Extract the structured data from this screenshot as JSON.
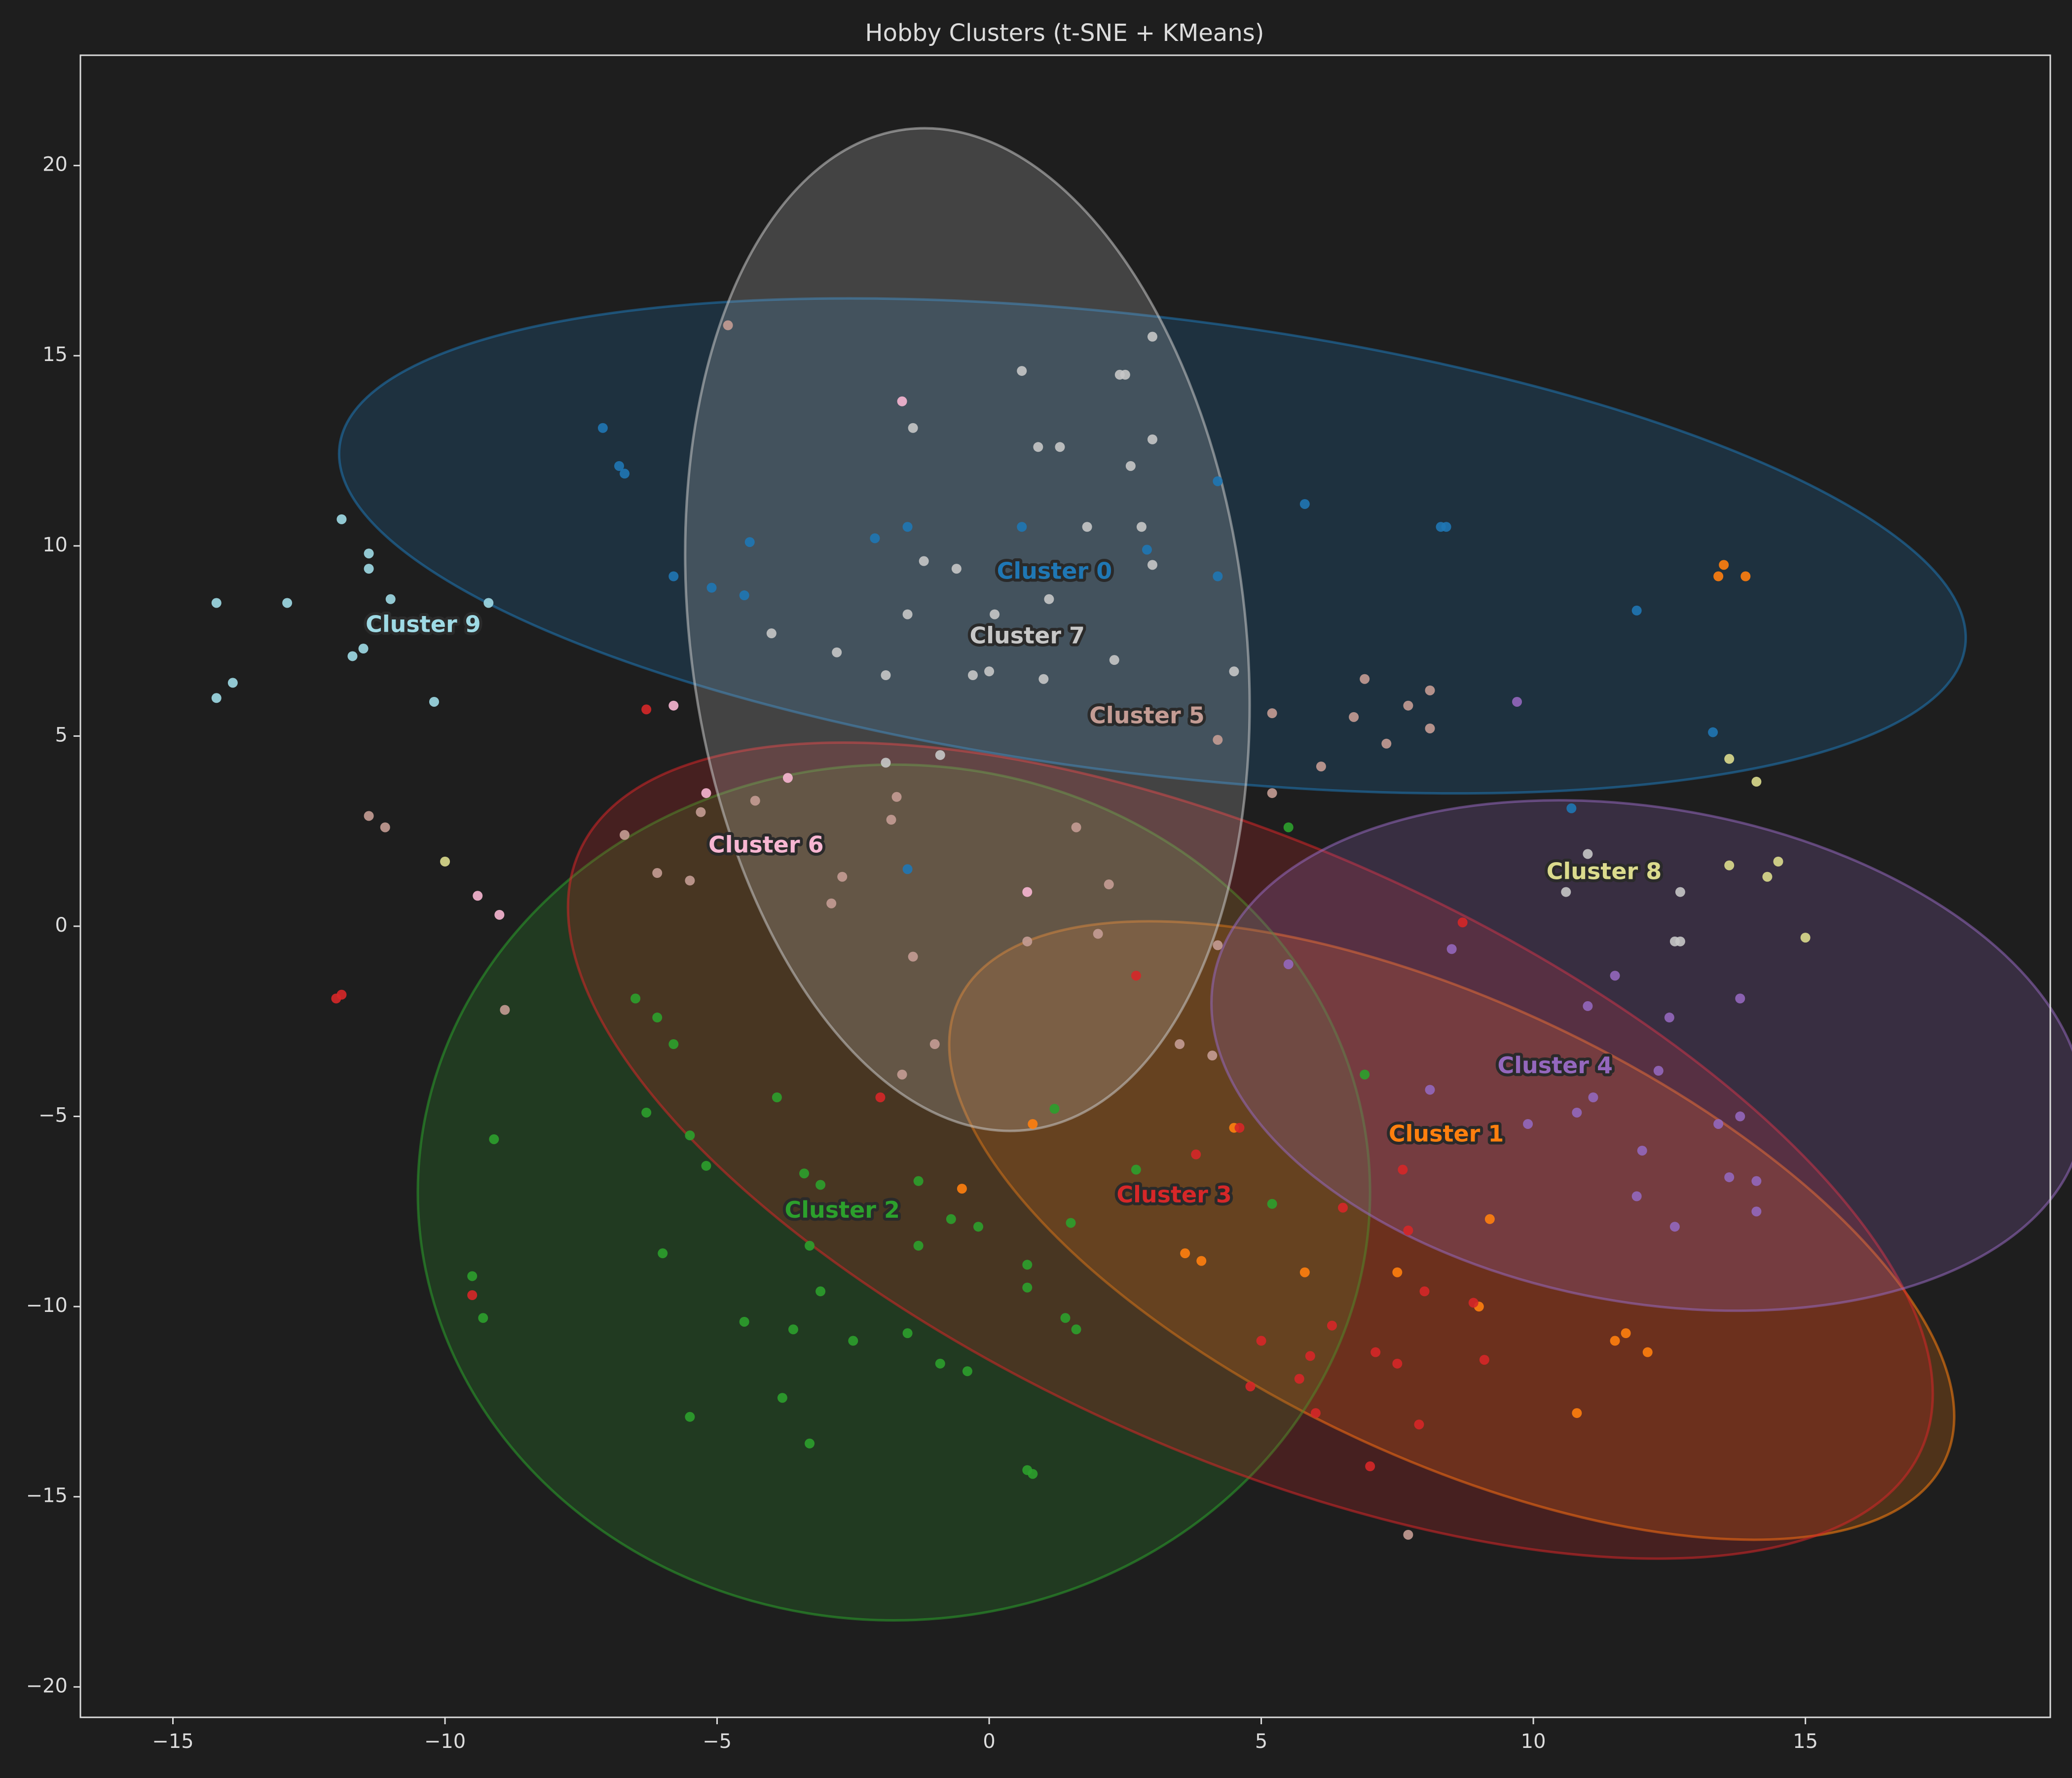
{
  "chart_data": {
    "type": "scatter",
    "title": "Hobby Clusters (t-SNE + KMeans)",
    "xlabel": "",
    "ylabel": "",
    "xlim": [
      -16.7,
      19.5
    ],
    "ylim": [
      -20.8,
      22.9
    ],
    "xticks": [
      -15,
      -10,
      -5,
      0,
      5,
      10,
      15
    ],
    "yticks": [
      -20,
      -15,
      -10,
      -5,
      0,
      5,
      10,
      15,
      20
    ],
    "grid": false,
    "legend": "none",
    "background": "#1e1e1e",
    "axis_color": "#dcdcdc",
    "clusters": [
      {
        "label": "Cluster 0",
        "color": "#1f77b4",
        "label_pos": [
          1.2,
          9.3
        ],
        "ellipse": {
          "center": [
            3.0,
            10.0
          ],
          "width": 30.1,
          "height": 12.0,
          "angle": -7
        },
        "points": [
          [
            -7.1,
            13.1
          ],
          [
            -6.8,
            12.1
          ],
          [
            -6.7,
            11.9
          ],
          [
            -5.8,
            9.2
          ],
          [
            -5.1,
            8.9
          ],
          [
            -4.4,
            10.1
          ],
          [
            -4.5,
            8.7
          ],
          [
            -2.1,
            10.2
          ],
          [
            -1.5,
            10.5
          ],
          [
            0.6,
            10.5
          ],
          [
            4.2,
            11.7
          ],
          [
            4.2,
            9.2
          ],
          [
            5.8,
            11.1
          ],
          [
            8.3,
            10.5
          ],
          [
            8.4,
            10.5
          ],
          [
            11.9,
            8.3
          ],
          [
            13.3,
            5.1
          ],
          [
            10.7,
            3.1
          ],
          [
            -1.5,
            1.5
          ],
          [
            2.9,
            9.9
          ]
        ]
      },
      {
        "label": "Cluster 1",
        "color": "#ff7f0e",
        "label_pos": [
          8.4,
          -5.5
        ],
        "ellipse": {
          "center": [
            8.5,
            -8.0
          ],
          "width": 20,
          "height": 12,
          "angle": -25
        },
        "points": [
          [
            13.4,
            9.2
          ],
          [
            13.5,
            9.5
          ],
          [
            13.9,
            9.2
          ],
          [
            -0.5,
            -6.9
          ],
          [
            0.8,
            -5.2
          ],
          [
            3.6,
            -8.6
          ],
          [
            3.9,
            -8.8
          ],
          [
            4.5,
            -5.3
          ],
          [
            5.8,
            -9.1
          ],
          [
            7.5,
            -9.1
          ],
          [
            9.0,
            -10.0
          ],
          [
            9.2,
            -7.7
          ],
          [
            10.8,
            -12.8
          ],
          [
            11.5,
            -10.9
          ],
          [
            11.7,
            -10.7
          ],
          [
            12.1,
            -11.2
          ]
        ]
      },
      {
        "label": "Cluster 2",
        "color": "#2ca02c",
        "label_pos": [
          -2.7,
          -7.5
        ],
        "ellipse": {
          "center": [
            -1.75,
            -7.0
          ],
          "width": 17.5,
          "height": 22.5,
          "angle": 0
        },
        "points": [
          [
            -6.5,
            -1.9
          ],
          [
            -6.1,
            -2.4
          ],
          [
            -5.8,
            -3.1
          ],
          [
            -6.3,
            -4.9
          ],
          [
            -5.5,
            -5.5
          ],
          [
            -5.2,
            -6.3
          ],
          [
            -3.9,
            -4.5
          ],
          [
            -3.4,
            -6.5
          ],
          [
            -3.1,
            -6.8
          ],
          [
            -3.3,
            -8.4
          ],
          [
            -3.1,
            -9.6
          ],
          [
            -6.0,
            -8.6
          ],
          [
            -9.1,
            -5.6
          ],
          [
            -9.5,
            -9.2
          ],
          [
            -9.3,
            -10.3
          ],
          [
            -4.5,
            -10.4
          ],
          [
            -3.6,
            -10.6
          ],
          [
            -2.5,
            -10.9
          ],
          [
            -1.5,
            -10.7
          ],
          [
            -1.3,
            -6.7
          ],
          [
            -1.3,
            -8.4
          ],
          [
            -0.7,
            -7.7
          ],
          [
            -0.2,
            -7.9
          ],
          [
            0.7,
            -8.9
          ],
          [
            0.7,
            -9.5
          ],
          [
            1.2,
            -4.8
          ],
          [
            1.5,
            -7.8
          ],
          [
            1.4,
            -10.3
          ],
          [
            1.6,
            -10.6
          ],
          [
            2.7,
            -6.4
          ],
          [
            5.2,
            -7.3
          ],
          [
            6.9,
            -3.9
          ],
          [
            -0.9,
            -11.5
          ],
          [
            -0.4,
            -11.7
          ],
          [
            -3.8,
            -12.4
          ],
          [
            -5.5,
            -12.9
          ],
          [
            -3.3,
            -13.6
          ],
          [
            0.7,
            -14.3
          ],
          [
            0.8,
            -14.4
          ],
          [
            5.5,
            2.6
          ]
        ]
      },
      {
        "label": "Cluster 3",
        "color": "#d62728",
        "label_pos": [
          3.4,
          -7.1
        ],
        "ellipse": {
          "center": [
            4.8,
            -5.9
          ],
          "width": 27.0,
          "height": 16.0,
          "angle": -24
        },
        "points": [
          [
            -11.9,
            -1.8
          ],
          [
            -12.0,
            -1.9
          ],
          [
            -9.5,
            -9.7
          ],
          [
            -6.3,
            5.7
          ],
          [
            -2.0,
            -4.5
          ],
          [
            2.7,
            -1.3
          ],
          [
            3.8,
            -6.0
          ],
          [
            4.6,
            -5.3
          ],
          [
            5.0,
            -10.9
          ],
          [
            4.8,
            -12.1
          ],
          [
            5.7,
            -11.9
          ],
          [
            5.9,
            -11.3
          ],
          [
            6.0,
            -12.8
          ],
          [
            6.3,
            -10.5
          ],
          [
            7.1,
            -11.2
          ],
          [
            7.5,
            -11.5
          ],
          [
            7.0,
            -14.2
          ],
          [
            7.6,
            -6.4
          ],
          [
            7.7,
            -8.0
          ],
          [
            8.0,
            -9.6
          ],
          [
            8.7,
            0.1
          ],
          [
            8.9,
            -9.9
          ],
          [
            9.1,
            -11.4
          ],
          [
            7.9,
            -13.1
          ],
          [
            6.5,
            -7.4
          ]
        ]
      },
      {
        "label": "Cluster 4",
        "color": "#9467bd",
        "label_pos": [
          10.4,
          -3.7
        ],
        "ellipse": {
          "center": [
            12.1,
            -3.4
          ],
          "width": 16.2,
          "height": 13.0,
          "angle": -10
        },
        "points": [
          [
            9.7,
            5.9
          ],
          [
            8.5,
            -0.6
          ],
          [
            11.0,
            -2.1
          ],
          [
            11.5,
            -1.3
          ],
          [
            12.5,
            -2.4
          ],
          [
            13.8,
            -1.9
          ],
          [
            11.1,
            -4.5
          ],
          [
            12.3,
            -3.8
          ],
          [
            10.8,
            -4.9
          ],
          [
            9.9,
            -5.2
          ],
          [
            8.1,
            -4.3
          ],
          [
            12.0,
            -5.9
          ],
          [
            11.9,
            -7.1
          ],
          [
            13.4,
            -5.2
          ],
          [
            13.8,
            -5.0
          ],
          [
            13.6,
            -6.6
          ],
          [
            14.1,
            -6.7
          ],
          [
            14.1,
            -7.5
          ],
          [
            12.6,
            -7.9
          ],
          [
            5.5,
            -1.0
          ]
        ]
      },
      {
        "label": "Cluster 5",
        "color": "#c49c94",
        "label_pos": [
          2.9,
          5.5
        ],
        "ellipse": null,
        "points": [
          [
            -4.8,
            15.8
          ],
          [
            -11.4,
            2.9
          ],
          [
            -11.1,
            2.6
          ],
          [
            -8.9,
            -2.2
          ],
          [
            -6.7,
            2.4
          ],
          [
            -6.1,
            1.4
          ],
          [
            -5.5,
            1.2
          ],
          [
            -5.3,
            3.0
          ],
          [
            -4.3,
            3.3
          ],
          [
            -2.9,
            0.6
          ],
          [
            -2.7,
            1.3
          ],
          [
            -1.8,
            2.8
          ],
          [
            -1.7,
            3.4
          ],
          [
            -1.4,
            -0.8
          ],
          [
            1.6,
            2.6
          ],
          [
            2.2,
            1.1
          ],
          [
            2.0,
            -0.2
          ],
          [
            5.2,
            5.6
          ],
          [
            5.2,
            3.5
          ],
          [
            6.1,
            4.2
          ],
          [
            6.7,
            5.5
          ],
          [
            7.3,
            4.8
          ],
          [
            7.7,
            5.8
          ],
          [
            8.1,
            5.2
          ],
          [
            8.1,
            6.2
          ],
          [
            6.9,
            6.5
          ],
          [
            4.2,
            4.9
          ],
          [
            4.2,
            -0.5
          ],
          [
            0.7,
            -0.4
          ],
          [
            7.7,
            -16.0
          ],
          [
            4.1,
            -3.4
          ],
          [
            3.5,
            -3.1
          ],
          [
            -1.0,
            -3.1
          ],
          [
            -1.6,
            -3.9
          ]
        ]
      },
      {
        "label": "Cluster 6",
        "color": "#f7b6d2",
        "label_pos": [
          -4.1,
          2.1
        ],
        "ellipse": null,
        "points": [
          [
            -1.6,
            13.8
          ],
          [
            -5.8,
            5.8
          ],
          [
            -5.2,
            3.5
          ],
          [
            -3.7,
            3.9
          ],
          [
            -9.4,
            0.8
          ],
          [
            -9.0,
            0.3
          ],
          [
            0.7,
            0.9
          ]
        ]
      },
      {
        "label": "Cluster 7",
        "color": "#c7c7c7",
        "label_pos": [
          0.7,
          7.6
        ],
        "ellipse": {
          "center": [
            -0.4,
            7.8
          ],
          "width": 10.2,
          "height": 26.5,
          "angle": 7
        },
        "points": [
          [
            0.6,
            14.6
          ],
          [
            2.4,
            14.5
          ],
          [
            2.5,
            14.5
          ],
          [
            3.0,
            15.5
          ],
          [
            -1.4,
            13.1
          ],
          [
            0.9,
            12.6
          ],
          [
            1.3,
            12.6
          ],
          [
            3.0,
            12.8
          ],
          [
            2.6,
            12.1
          ],
          [
            -1.2,
            9.6
          ],
          [
            -0.6,
            9.4
          ],
          [
            1.8,
            10.5
          ],
          [
            2.8,
            10.5
          ],
          [
            3.0,
            9.5
          ],
          [
            -1.5,
            8.2
          ],
          [
            0.1,
            8.2
          ],
          [
            1.1,
            8.6
          ],
          [
            -4.0,
            7.7
          ],
          [
            -2.8,
            7.2
          ],
          [
            -1.9,
            6.6
          ],
          [
            -0.3,
            6.6
          ],
          [
            0.0,
            6.7
          ],
          [
            1.0,
            6.5
          ],
          [
            2.3,
            7.0
          ],
          [
            -1.9,
            4.3
          ],
          [
            -0.9,
            4.5
          ],
          [
            4.5,
            6.7
          ],
          [
            11.0,
            1.9
          ],
          [
            10.6,
            0.9
          ],
          [
            12.7,
            0.9
          ],
          [
            12.6,
            -0.4
          ],
          [
            12.7,
            -0.4
          ]
        ]
      },
      {
        "label": "Cluster 8",
        "color": "#dbdb8d",
        "label_pos": [
          11.3,
          1.4
        ],
        "ellipse": null,
        "points": [
          [
            13.6,
            4.4
          ],
          [
            14.1,
            3.8
          ],
          [
            13.6,
            1.6
          ],
          [
            14.3,
            1.3
          ],
          [
            14.5,
            1.7
          ],
          [
            15.0,
            -0.3
          ],
          [
            -10.0,
            1.7
          ]
        ]
      },
      {
        "label": "Cluster 9",
        "color": "#9edae5",
        "label_pos": [
          -10.4,
          7.9
        ],
        "ellipse": null,
        "points": [
          [
            -11.9,
            10.7
          ],
          [
            -11.4,
            9.8
          ],
          [
            -11.4,
            9.4
          ],
          [
            -11.0,
            8.6
          ],
          [
            -9.2,
            8.5
          ],
          [
            -12.9,
            8.5
          ],
          [
            -14.2,
            8.5
          ],
          [
            -11.7,
            7.1
          ],
          [
            -11.5,
            7.3
          ],
          [
            -13.9,
            6.4
          ],
          [
            -14.2,
            6.0
          ],
          [
            -10.2,
            5.9
          ]
        ]
      }
    ]
  }
}
